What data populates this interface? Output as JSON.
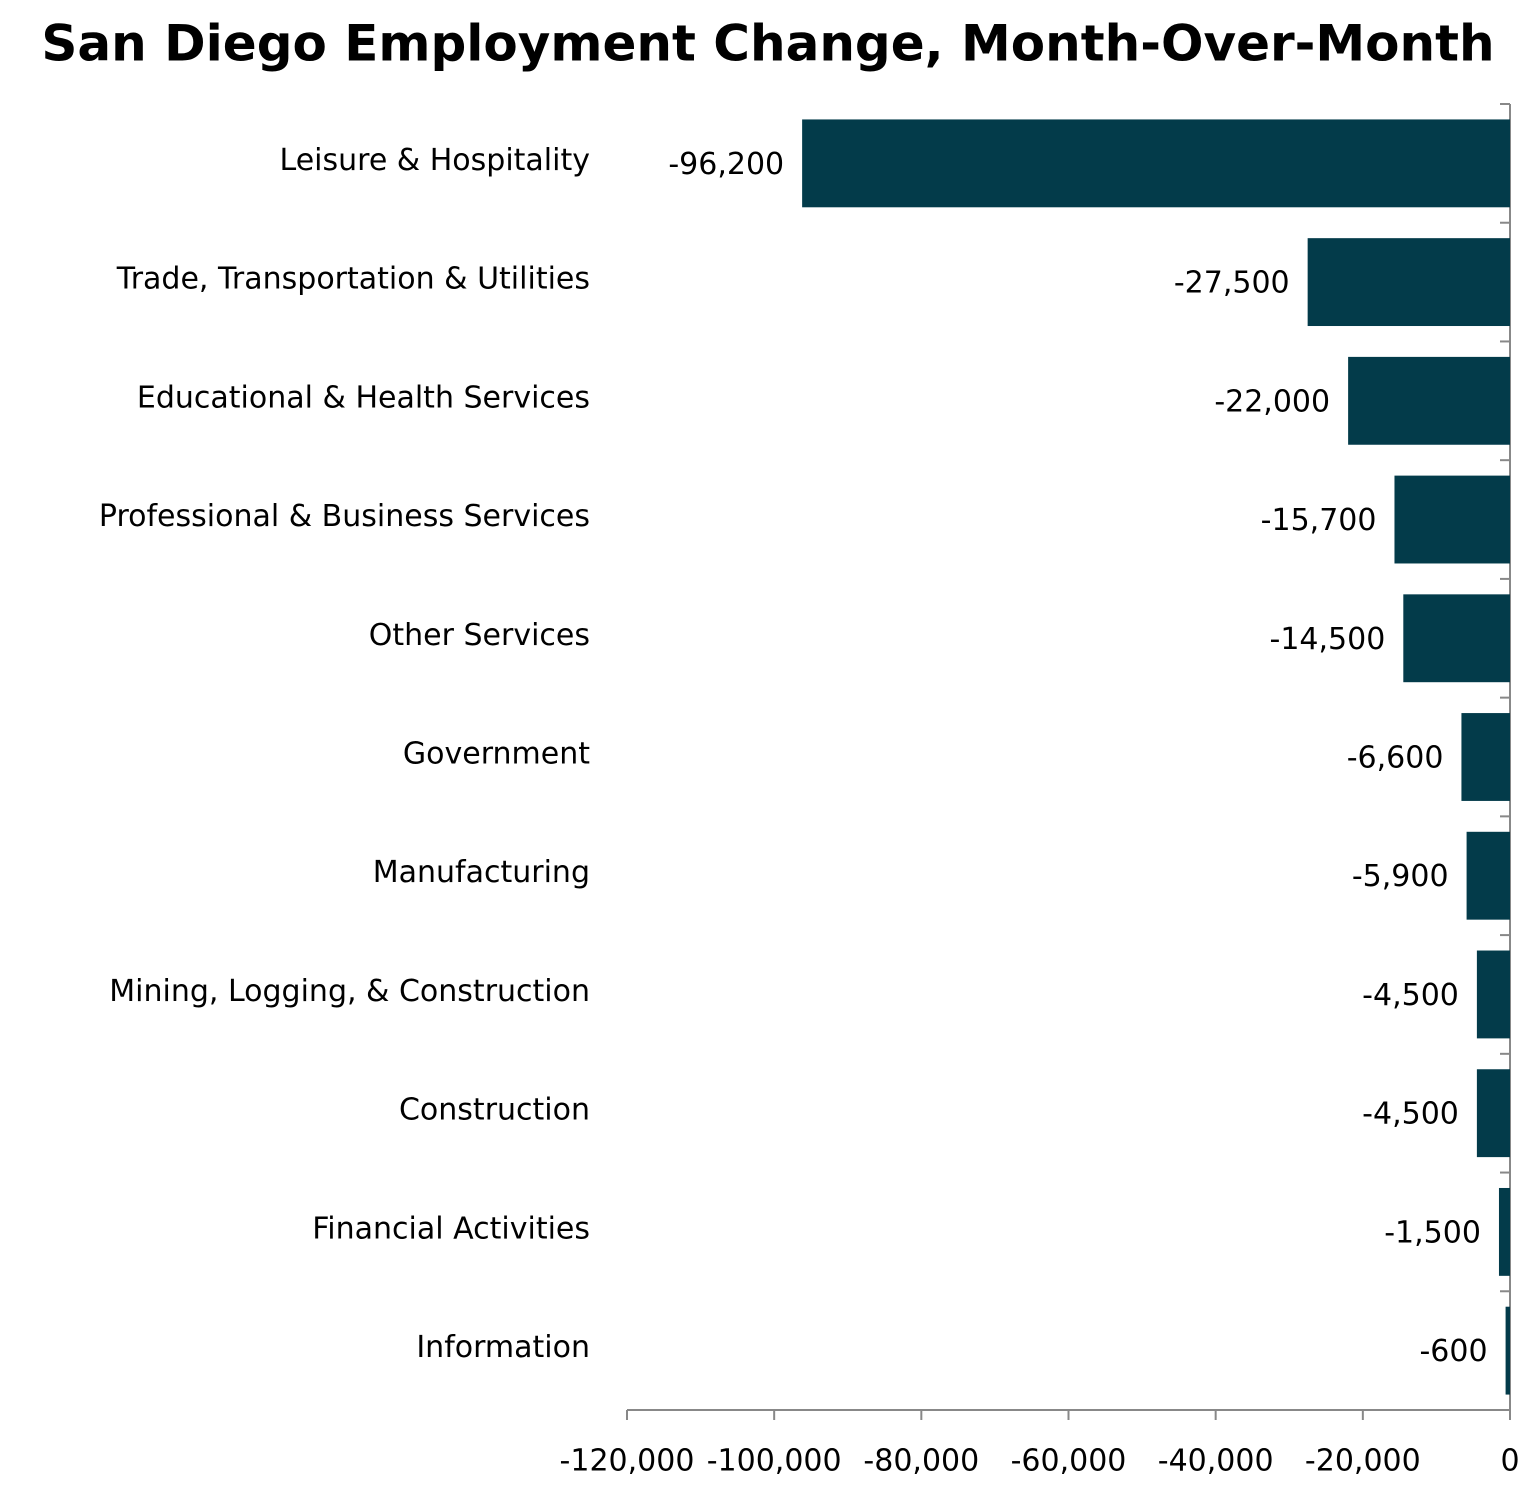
{
  "chart_data": {
    "type": "bar",
    "orientation": "horizontal",
    "title": "San Diego Employment Change, Month-Over-Month",
    "categories": [
      "Leisure & Hospitality",
      "Trade, Transportation & Utilities",
      "Educational & Health Services",
      "Professional & Business Services",
      "Other Services",
      "Government",
      "Manufacturing",
      "Mining, Logging, & Construction",
      "Construction",
      "Financial Activities",
      "Information"
    ],
    "values": [
      -96200,
      -27500,
      -22000,
      -15700,
      -14500,
      -6600,
      -5900,
      -4500,
      -4500,
      -1500,
      -600
    ],
    "value_labels": [
      "-96,200",
      "-27,500",
      "-22,000",
      "-15,700",
      "-14,500",
      "-6,600",
      "-5,900",
      "-4,500",
      "-4,500",
      "-1,500",
      "-600"
    ],
    "color": "#033b4a",
    "xlim": [
      -120000,
      0
    ],
    "xticks": [
      {
        "value": -120000,
        "label": "-120,000"
      },
      {
        "value": -100000,
        "label": "-100,000"
      },
      {
        "value": -80000,
        "label": "-80,000"
      },
      {
        "value": -60000,
        "label": "-60,000"
      },
      {
        "value": -40000,
        "label": "-40,000"
      },
      {
        "value": -20000,
        "label": "-20,000"
      },
      0
    ],
    "grid": false
  }
}
